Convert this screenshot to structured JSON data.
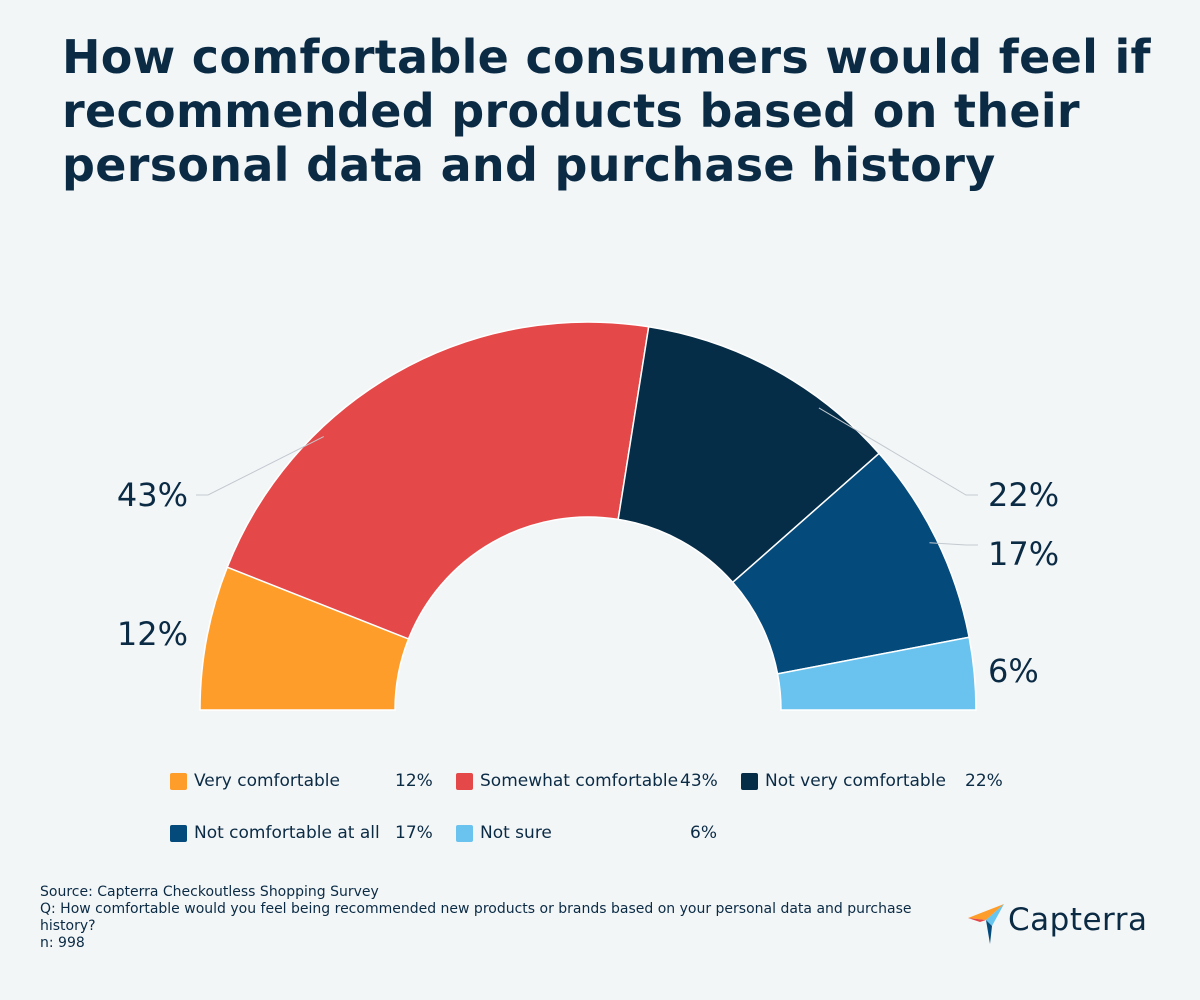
{
  "title": "How comfortable consumers would feel if recommended products based on their personal data and purchase history",
  "chart_data": {
    "type": "pie",
    "variant": "semi-donut",
    "categories": [
      "Very comfortable",
      "Somewhat comfortable",
      "Not very comfortable",
      "Not comfortable at all",
      "Not sure"
    ],
    "values": [
      12,
      43,
      22,
      17,
      6
    ],
    "value_labels": [
      "12%",
      "43%",
      "22%",
      "17%",
      "6%"
    ],
    "colors": [
      "#ff9d2a",
      "#e54848",
      "#052d47",
      "#044a7b",
      "#6ac3ee"
    ],
    "legend_position": "bottom"
  },
  "legend": [
    {
      "label": "Very comfortable",
      "value": "12%"
    },
    {
      "label": "Somewhat comfortable",
      "value": "43%"
    },
    {
      "label": "Not very comfortable",
      "value": "22%"
    },
    {
      "label": "Not comfortable at all",
      "value": "17%"
    },
    {
      "label": "Not sure",
      "value": "6%"
    }
  ],
  "footer": {
    "source": "Source: Capterra Checkoutless Shopping Survey",
    "question": "Q: How comfortable would you feel being recommended new products or brands based on your personal data and purchase history?",
    "n": "n: 998"
  },
  "brand": {
    "name": "Capterra",
    "logo_icon": "capterra-arrow-icon",
    "logo_colors": [
      "#ff9d2a",
      "#68c5ed",
      "#044a7b",
      "#e54848"
    ]
  }
}
